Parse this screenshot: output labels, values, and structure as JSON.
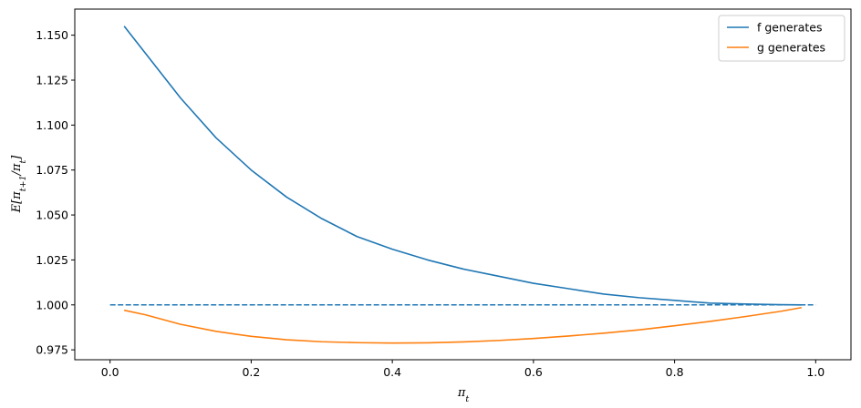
{
  "chart_data": {
    "type": "line",
    "title": "",
    "xlabel": "π_t",
    "ylabel": "E[π_{t+1}/π_t]",
    "xlim": [
      -0.05,
      1.05
    ],
    "ylim": [
      0.9695,
      1.1645
    ],
    "xticks": [
      0.0,
      0.2,
      0.4,
      0.6,
      0.8,
      1.0
    ],
    "xtick_labels": [
      "0.0",
      "0.2",
      "0.4",
      "0.6",
      "0.8",
      "1.0"
    ],
    "yticks": [
      0.975,
      1.0,
      1.025,
      1.05,
      1.075,
      1.1,
      1.125,
      1.15
    ],
    "ytick_labels": [
      "0.975",
      "1.000",
      "1.025",
      "1.050",
      "1.075",
      "1.100",
      "1.125",
      "1.150"
    ],
    "grid": false,
    "legend_position": "top-right",
    "series": [
      {
        "name": "f generates",
        "color": "#1f77b4",
        "style": "solid",
        "x": [
          0.02,
          0.05,
          0.08,
          0.1,
          0.15,
          0.2,
          0.25,
          0.3,
          0.35,
          0.4,
          0.45,
          0.5,
          0.55,
          0.6,
          0.65,
          0.7,
          0.75,
          0.8,
          0.85,
          0.9,
          0.95,
          0.98
        ],
        "y": [
          1.155,
          1.14,
          1.125,
          1.115,
          1.093,
          1.075,
          1.06,
          1.048,
          1.038,
          1.031,
          1.025,
          1.02,
          1.016,
          1.012,
          1.009,
          1.006,
          1.004,
          1.0025,
          1.001,
          1.0005,
          1.0001,
          1.0
        ]
      },
      {
        "name": "g generates",
        "color": "#ff7f0e",
        "style": "solid",
        "x": [
          0.02,
          0.05,
          0.1,
          0.15,
          0.2,
          0.25,
          0.3,
          0.35,
          0.4,
          0.45,
          0.5,
          0.55,
          0.6,
          0.65,
          0.7,
          0.75,
          0.8,
          0.85,
          0.9,
          0.95,
          0.98
        ],
        "y": [
          0.997,
          0.9945,
          0.9892,
          0.9853,
          0.9825,
          0.9806,
          0.9795,
          0.979,
          0.9788,
          0.9789,
          0.9794,
          0.9802,
          0.9813,
          0.9827,
          0.9843,
          0.9861,
          0.9884,
          0.9908,
          0.9935,
          0.9964,
          0.9985
        ]
      },
      {
        "name": "",
        "color": "#1f77b4",
        "style": "dashed",
        "x": [
          0.0,
          1.0
        ],
        "y": [
          1.0,
          1.0
        ]
      }
    ]
  }
}
